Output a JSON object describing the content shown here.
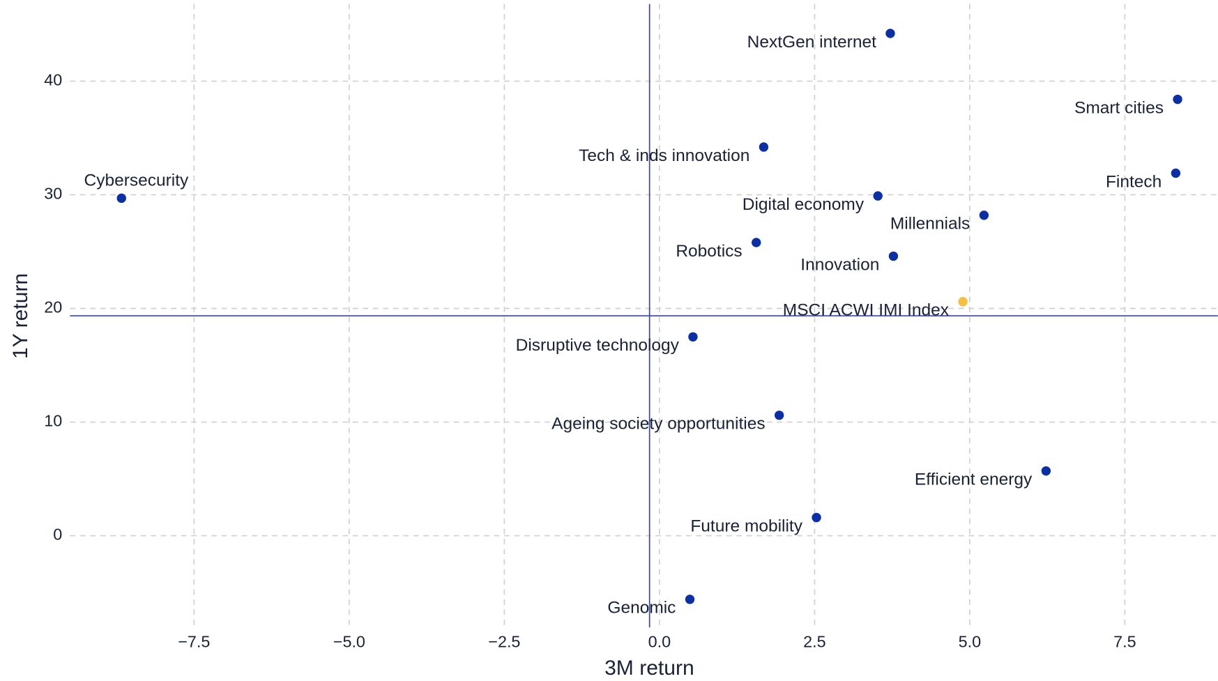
{
  "chart_data": {
    "type": "scatter",
    "x_label": "3M return",
    "y_label": "1Y return",
    "labels": [
      "NextGen internet",
      "Smart cities",
      "Fintech",
      "Tech & inds innovation",
      "Cybersecurity",
      "Digital economy",
      "Millennials",
      "Robotics",
      "Innovation",
      "MSCI ACWI IMI Index",
      "Disruptive technology",
      "Ageing society opportunities",
      "Efficient energy",
      "Future mobility",
      "Genomic"
    ],
    "x": [
      3.72,
      8.35,
      8.32,
      1.68,
      -8.67,
      3.52,
      5.23,
      1.56,
      3.77,
      4.89,
      0.54,
      1.93,
      6.23,
      2.53,
      0.49
    ],
    "y": [
      44.2,
      38.4,
      31.9,
      34.2,
      29.7,
      29.9,
      28.2,
      25.8,
      24.6,
      20.6,
      17.5,
      10.6,
      5.7,
      1.6,
      -5.6
    ],
    "point_colors": [
      "#0b2fa6",
      "#0b2fa6",
      "#0b2fa6",
      "#0b2fa6",
      "#0b2fa6",
      "#0b2fa6",
      "#0b2fa6",
      "#0b2fa6",
      "#0b2fa6",
      "#f7bf3f",
      "#0b2fa6",
      "#0b2fa6",
      "#0b2fa6",
      "#0b2fa6",
      "#0b2fa6"
    ],
    "reference_lines": {
      "x": -0.16,
      "y": 19.35,
      "color": "#3344bb"
    },
    "xlim": [
      -9.5,
      9.0
    ],
    "ylim": [
      -8.07,
      46.8
    ],
    "xticks": [
      {
        "value": -7.5,
        "label": "−7.5"
      },
      {
        "value": -5,
        "label": "−5.0"
      },
      {
        "value": -2.5,
        "label": "−2.5"
      },
      {
        "value": 0,
        "label": "0.0"
      },
      {
        "value": 2.5,
        "label": "2.5"
      },
      {
        "value": 5,
        "label": "5.0"
      },
      {
        "value": 7.5,
        "label": "7.5"
      }
    ],
    "yticks": [
      0,
      10,
      20,
      30,
      40
    ],
    "grid": true
  }
}
